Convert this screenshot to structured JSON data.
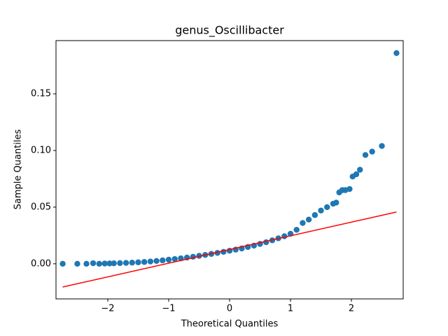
{
  "chart_data": {
    "type": "scatter",
    "title": "genus_Oscillibacter",
    "x_label": "Theoretical Quantiles",
    "y_label": "Sample Quantiles",
    "xlim": [
      -2.85,
      2.85
    ],
    "ylim": [
      -0.031,
      0.197
    ],
    "xticks": [
      {
        "value": -2,
        "label": "−2"
      },
      {
        "value": -1,
        "label": "−1"
      },
      0,
      1,
      2
    ],
    "yticks": [
      {
        "value": 0,
        "label": "0.00"
      },
      {
        "value": 0.05,
        "label": "0.05"
      },
      {
        "value": 0.1,
        "label": "0.10"
      },
      {
        "value": 0.15,
        "label": "0.15"
      }
    ],
    "points": {
      "color": "#1f77b4",
      "x": [
        -2.74,
        -2.5,
        -2.35,
        -2.24,
        -2.14,
        -2.05,
        -1.97,
        -1.9,
        -1.8,
        -1.7,
        -1.6,
        -1.5,
        -1.4,
        -1.3,
        -1.2,
        -1.1,
        -1.0,
        -0.9,
        -0.8,
        -0.7,
        -0.6,
        -0.5,
        -0.4,
        -0.3,
        -0.2,
        -0.1,
        0,
        0.1,
        0.2,
        0.3,
        0.4,
        0.5,
        0.6,
        0.7,
        0.8,
        0.9,
        1.0,
        1.1,
        1.2,
        1.3,
        1.4,
        1.5,
        1.6,
        1.7,
        1.75,
        1.8,
        1.85,
        1.9,
        1.97,
        2.02,
        2.08,
        2.14,
        2.23,
        2.34,
        2.5,
        2.74
      ],
      "values": [
        0,
        0,
        0,
        0.0005,
        0,
        0.0002,
        0.0003,
        0.0004,
        0.0006,
        0.0008,
        0.001,
        0.0013,
        0.0016,
        0.002,
        0.0025,
        0.003,
        0.0036,
        0.0042,
        0.0048,
        0.0055,
        0.0062,
        0.007,
        0.0078,
        0.0087,
        0.0096,
        0.0105,
        0.0115,
        0.0125,
        0.0135,
        0.0148,
        0.016,
        0.0175,
        0.019,
        0.0207,
        0.0225,
        0.0243,
        0.0265,
        0.03,
        0.036,
        0.039,
        0.043,
        0.047,
        0.05,
        0.053,
        0.054,
        0.063,
        0.065,
        0.065,
        0.066,
        0.077,
        0.079,
        0.083,
        0.096,
        0.099,
        0.104,
        0.186
      ]
    },
    "fit_line": {
      "color": "#ff0000",
      "x": [
        -2.74,
        2.74
      ],
      "values": [
        -0.0205,
        0.0457
      ]
    }
  }
}
